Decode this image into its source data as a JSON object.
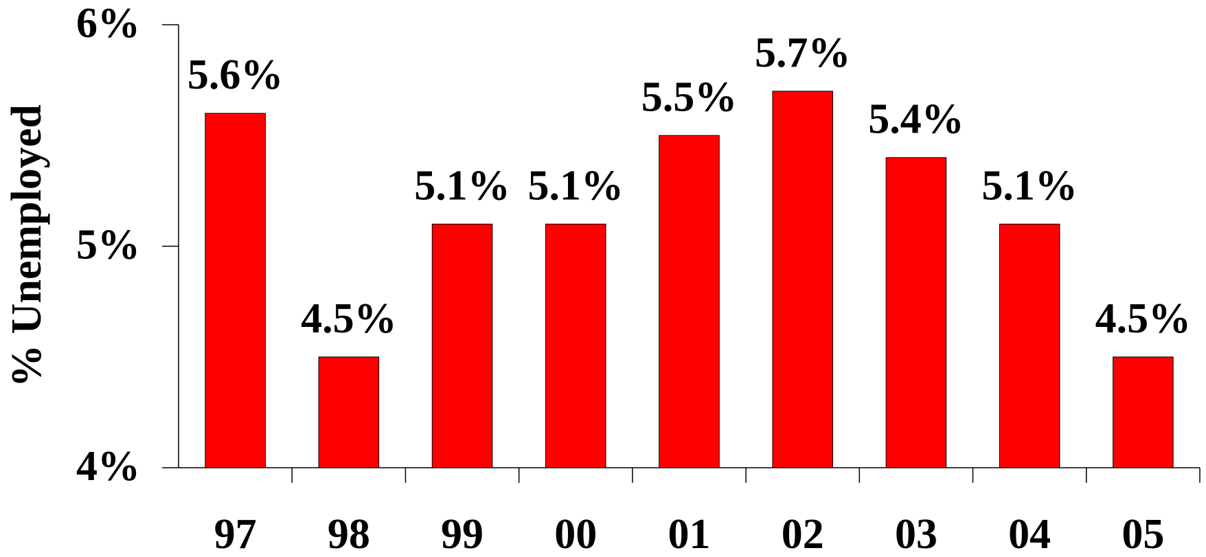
{
  "chart_data": {
    "type": "bar",
    "y_axis_label": "% Unemployed",
    "categories": [
      "97",
      "98",
      "99",
      "00",
      "01",
      "02",
      "03",
      "04",
      "05"
    ],
    "values": [
      5.6,
      4.5,
      5.1,
      5.1,
      5.5,
      5.7,
      5.4,
      5.1,
      4.5
    ],
    "value_labels": [
      "5.6%",
      "4.5%",
      "5.1%",
      "5.1%",
      "5.5%",
      "5.7%",
      "5.4%",
      "5.1%",
      "4.5%"
    ],
    "color": "#ff0000",
    "ylim": [
      4,
      6
    ],
    "yticks": [
      {
        "value": 4,
        "label": "4%"
      },
      {
        "value": 5,
        "label": "5%"
      },
      {
        "value": 6,
        "label": "6%"
      }
    ],
    "grid": false
  }
}
